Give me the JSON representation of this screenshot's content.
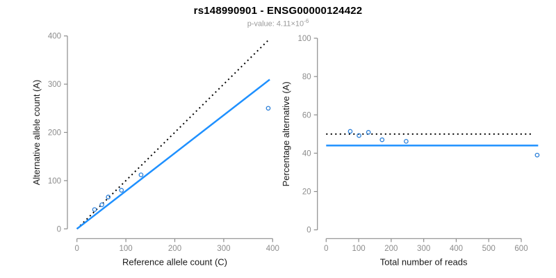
{
  "header": {
    "title": "rs148990901 - ENSG00000124422",
    "subtitle_prefix": "p-value: 4.11×10",
    "subtitle_exponent": "-6"
  },
  "colors": {
    "accent_blue": "#1E90FF",
    "point_blue": "#2B7FD8",
    "axis_gray": "#8C8C8C",
    "tick_label_gray": "#8C8C8C",
    "label_black": "#1A1A1A",
    "dotted_black": "#000000",
    "subtitle_gray": "#9A9A9A"
  },
  "chart_data": [
    {
      "type": "scatter",
      "xlabel": "Reference allele count (C)",
      "ylabel": "Alternative allele count (A)",
      "xlim": [
        0,
        400
      ],
      "ylim": [
        0,
        400
      ],
      "xticks": [
        0,
        100,
        200,
        300,
        400
      ],
      "yticks": [
        0,
        100,
        200,
        300,
        400
      ],
      "grid": false,
      "legend": "none",
      "points": [
        [
          36,
          40
        ],
        [
          51,
          50
        ],
        [
          64,
          66
        ],
        [
          91,
          80
        ],
        [
          131,
          112
        ],
        [
          391,
          250
        ]
      ],
      "lines": [
        {
          "name": "identity-line",
          "style": "dotted",
          "color": "#000000",
          "width": 2,
          "from": [
            0,
            0
          ],
          "to": [
            392,
            392
          ]
        },
        {
          "name": "fit-line",
          "style": "solid",
          "color": "#1E90FF",
          "width": 2.5,
          "from": [
            0,
            0
          ],
          "to": [
            394,
            309.6
          ]
        }
      ]
    },
    {
      "type": "scatter",
      "xlabel": "Total number of reads",
      "ylabel": "Percentage alternative (A)",
      "xlim": [
        0,
        600
      ],
      "ylim": [
        0,
        100
      ],
      "xticks": [
        0,
        100,
        200,
        300,
        400,
        500,
        600
      ],
      "yticks": [
        0,
        20,
        40,
        60,
        80,
        100
      ],
      "grid": false,
      "legend": "none",
      "points": [
        [
          74,
          51.4
        ],
        [
          101,
          49.2
        ],
        [
          130,
          50.9
        ],
        [
          172,
          47
        ],
        [
          246,
          46.2
        ],
        [
          649,
          39
        ]
      ],
      "lines": [
        {
          "name": "expected-50pct-line",
          "style": "dotted",
          "color": "#000000",
          "width": 2,
          "from": [
            0,
            50
          ],
          "to": [
            638,
            50
          ]
        },
        {
          "name": "observed-pct-line",
          "style": "solid",
          "color": "#1E90FF",
          "width": 2.5,
          "from": [
            0,
            44
          ],
          "to": [
            652,
            44
          ]
        }
      ]
    }
  ]
}
